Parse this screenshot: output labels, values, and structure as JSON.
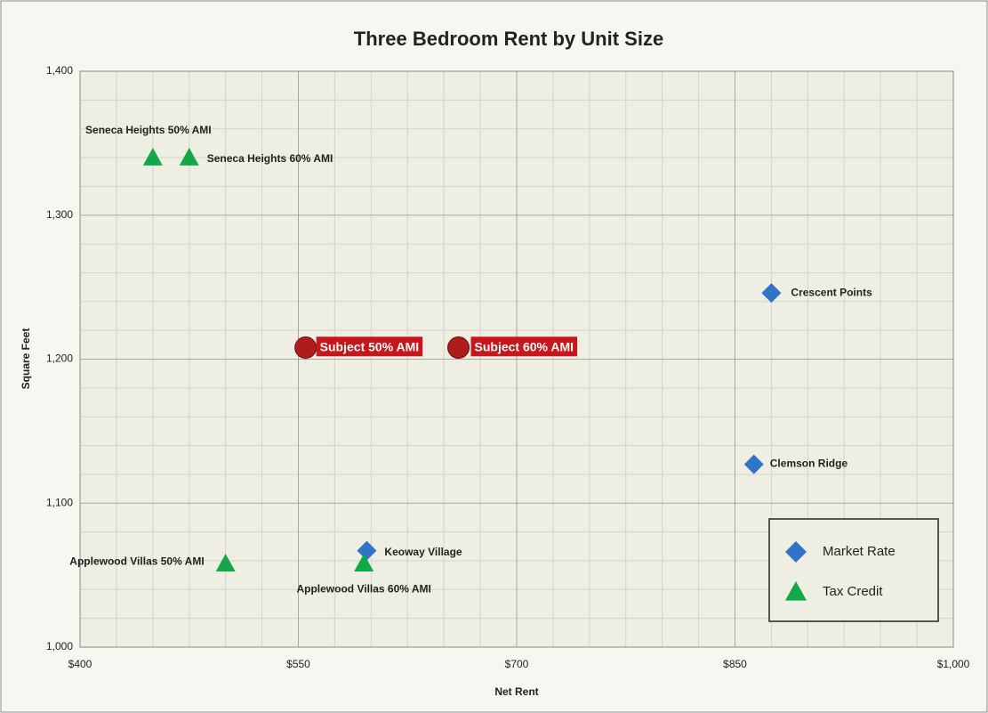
{
  "chart_data": {
    "type": "scatter",
    "title": "Three Bedroom Rent by Unit Size",
    "x_label": "Net Rent",
    "y_label": "Square Feet",
    "xlim": [
      400,
      1000
    ],
    "ylim": [
      1000,
      1400
    ],
    "xticks": [
      {
        "value": 400,
        "label": "$400"
      },
      {
        "value": 550,
        "label": "$550"
      },
      {
        "value": 700,
        "label": "$700"
      },
      {
        "value": 850,
        "label": "$850"
      },
      {
        "value": 1000,
        "label": "$1,000"
      }
    ],
    "yticks": [
      {
        "value": 1000,
        "label": "1,000"
      },
      {
        "value": 1100,
        "label": "1,100"
      },
      {
        "value": 1200,
        "label": "1,200"
      },
      {
        "value": 1300,
        "label": "1,300"
      },
      {
        "value": 1400,
        "label": "1,400"
      }
    ],
    "grid": true,
    "legend": "lower right",
    "series": [
      {
        "name": "Market Rate",
        "color": "#2f74c9",
        "marker": "diamond",
        "x": [
          597,
          863,
          875
        ],
        "values": [
          1067,
          1127,
          1246
        ],
        "labels": [
          "Keoway Village",
          "Clemson Ridge",
          "Crescent Points"
        ]
      },
      {
        "name": "Tax Credit",
        "color": "#12a84a",
        "marker": "triangle",
        "x": [
          450,
          475,
          500,
          595
        ],
        "values": [
          1340,
          1340,
          1058,
          1058
        ],
        "labels": [
          "Seneca Heights 50% AMI",
          "Seneca Heights 60% AMI",
          "Applewood Villas 50% AMI",
          "Applewood Villas 60% AMI"
        ]
      },
      {
        "color": "#b01c1c",
        "marker": "circle",
        "x": [
          555,
          660
        ],
        "values": [
          1208,
          1208
        ],
        "labels": [
          "Subject 50% AMI",
          "Subject 60% AMI"
        ]
      }
    ]
  }
}
